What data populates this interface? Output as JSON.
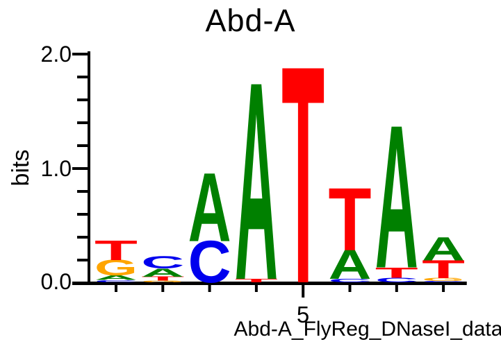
{
  "chart_data": {
    "type": "sequence-logo",
    "title": "Abd-A",
    "ylabel": "bits",
    "caption": "Abd-A_FlyReg_DNaseI_data",
    "ylim": [
      0.0,
      2.0
    ],
    "yticks_major": [
      0.0,
      1.0,
      2.0
    ],
    "ytick_labels": [
      "0.0",
      "1.0",
      "2.0"
    ],
    "y_minor_tick_step": 0.2,
    "num_positions": 8,
    "xtick_label": {
      "position": 5,
      "label": "5"
    },
    "stack_order": "top_to_bottom",
    "colors": {
      "A": "#008000",
      "C": "#0000EE",
      "G": "#FFA500",
      "T": "#FF0000",
      "axis": "#000000"
    },
    "positions": [
      {
        "index": 1,
        "stack": [
          {
            "base": "T",
            "bits": 0.17
          },
          {
            "base": "G",
            "bits": 0.135
          },
          {
            "base": "A",
            "bits": 0.04
          },
          {
            "base": "C",
            "bits": 0.02
          }
        ]
      },
      {
        "index": 2,
        "stack": [
          {
            "base": "C",
            "bits": 0.105
          },
          {
            "base": "A",
            "bits": 0.07
          },
          {
            "base": "T",
            "bits": 0.035
          },
          {
            "base": "G",
            "bits": 0.015
          }
        ]
      },
      {
        "index": 3,
        "stack": [
          {
            "base": "A",
            "bits": 0.59
          },
          {
            "base": "C",
            "bits": 0.36
          }
        ]
      },
      {
        "index": 4,
        "stack": [
          {
            "base": "A",
            "bits": 1.7
          },
          {
            "base": "T",
            "bits": 0.03
          }
        ]
      },
      {
        "index": 5,
        "stack": [
          {
            "base": "T",
            "bits": 1.87
          }
        ]
      },
      {
        "index": 6,
        "stack": [
          {
            "base": "T",
            "bits": 0.54
          },
          {
            "base": "A",
            "bits": 0.25
          },
          {
            "base": "C",
            "bits": 0.03
          }
        ]
      },
      {
        "index": 7,
        "stack": [
          {
            "base": "A",
            "bits": 1.23
          },
          {
            "base": "T",
            "bits": 0.09
          },
          {
            "base": "C",
            "bits": 0.04
          }
        ]
      },
      {
        "index": 8,
        "stack": [
          {
            "base": "A",
            "bits": 0.2
          },
          {
            "base": "T",
            "bits": 0.155
          },
          {
            "base": "G",
            "bits": 0.025
          },
          {
            "base": "C",
            "bits": 0.012
          }
        ]
      }
    ]
  }
}
